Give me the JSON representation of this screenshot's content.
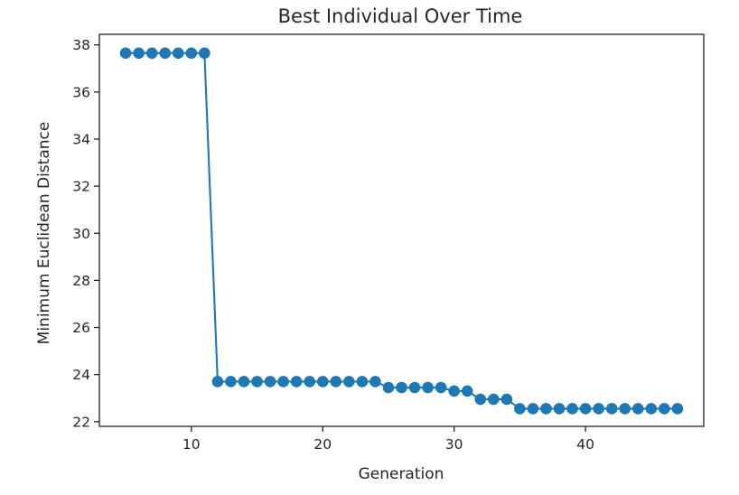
{
  "chart_data": {
    "type": "line",
    "title": "Best Individual Over Time",
    "xlabel": "Generation",
    "ylabel": "Minimum Euclidean Distance",
    "xlim": [
      3,
      49
    ],
    "ylim": [
      21.8,
      38.45
    ],
    "xticks": [
      10,
      20,
      30,
      40
    ],
    "yticks": [
      22,
      24,
      26,
      28,
      30,
      32,
      34,
      36,
      38
    ],
    "marker": "circle",
    "grid": false,
    "series": [
      {
        "color": "#1f77b4",
        "x": [
          5,
          6,
          7,
          8,
          9,
          10,
          11,
          12,
          13,
          14,
          15,
          16,
          17,
          18,
          19,
          20,
          21,
          22,
          23,
          24,
          25,
          26,
          27,
          28,
          29,
          30,
          31,
          32,
          33,
          34,
          35,
          36,
          37,
          38,
          39,
          40,
          41,
          42,
          43,
          44,
          45,
          46,
          47
        ],
        "y": [
          37.65,
          37.65,
          37.65,
          37.65,
          37.65,
          37.65,
          37.65,
          23.7,
          23.7,
          23.7,
          23.7,
          23.7,
          23.7,
          23.7,
          23.7,
          23.7,
          23.7,
          23.7,
          23.7,
          23.7,
          23.45,
          23.45,
          23.45,
          23.45,
          23.45,
          23.3,
          23.3,
          22.95,
          22.95,
          22.95,
          22.55,
          22.55,
          22.55,
          22.55,
          22.55,
          22.55,
          22.55,
          22.55,
          22.55,
          22.55,
          22.55,
          22.55,
          22.55
        ]
      }
    ]
  }
}
